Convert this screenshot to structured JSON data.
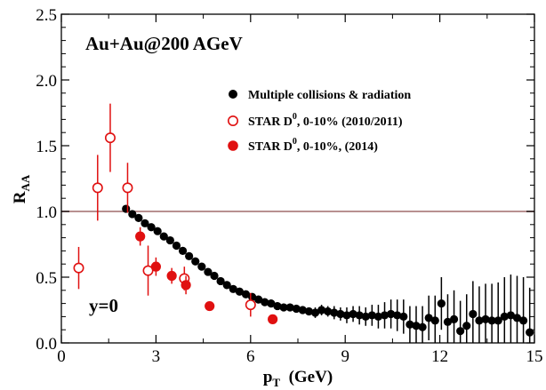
{
  "chart_data": {
    "type": "scatter",
    "title": "",
    "xlabel": {
      "main": "p",
      "sub": "T",
      "rest": "  (GeV)"
    },
    "ylabel": {
      "main": "R",
      "sub": "AA"
    },
    "xlim": [
      0,
      15
    ],
    "ylim": [
      0,
      2.5
    ],
    "xticks": [
      {
        "v": 0,
        "label": "0"
      },
      {
        "v": 3,
        "label": "3"
      },
      {
        "v": 6,
        "label": "6"
      },
      {
        "v": 9,
        "label": "9"
      },
      {
        "v": 12,
        "label": "12"
      },
      {
        "v": 15,
        "label": "15"
      }
    ],
    "yticks": [
      {
        "v": 0,
        "label": "0.0"
      },
      {
        "v": 0.5,
        "label": "0.5"
      },
      {
        "v": 1.0,
        "label": "1.0"
      },
      {
        "v": 1.5,
        "label": "1.5"
      },
      {
        "v": 2.0,
        "label": "2.0"
      },
      {
        "v": 2.5,
        "label": "2.5"
      }
    ],
    "grid": false,
    "legend_position": "top-right",
    "reference_line": {
      "y": 1.0,
      "color": "#b89090"
    },
    "annotations": {
      "system": "Au+Au@200 AGeV",
      "rapidity": "y=0"
    },
    "series": [
      {
        "name": "Multiple collisions & radiation",
        "marker": "filled-circle",
        "color": "#000000",
        "points": [
          [
            2.05,
            1.02,
            0.02
          ],
          [
            2.25,
            0.98,
            0.02
          ],
          [
            2.45,
            0.95,
            0.02
          ],
          [
            2.65,
            0.91,
            0.02
          ],
          [
            2.85,
            0.88,
            0.02
          ],
          [
            3.05,
            0.85,
            0.02
          ],
          [
            3.25,
            0.81,
            0.02
          ],
          [
            3.45,
            0.78,
            0.02
          ],
          [
            3.65,
            0.74,
            0.02
          ],
          [
            3.85,
            0.7,
            0.02
          ],
          [
            4.05,
            0.66,
            0.02
          ],
          [
            4.25,
            0.62,
            0.02
          ],
          [
            4.45,
            0.58,
            0.02
          ],
          [
            4.65,
            0.54,
            0.02
          ],
          [
            4.85,
            0.51,
            0.02
          ],
          [
            5.05,
            0.47,
            0.02
          ],
          [
            5.25,
            0.44,
            0.02
          ],
          [
            5.45,
            0.41,
            0.02
          ],
          [
            5.65,
            0.39,
            0.02
          ],
          [
            5.85,
            0.37,
            0.02
          ],
          [
            6.05,
            0.35,
            0.02
          ],
          [
            6.25,
            0.33,
            0.02
          ],
          [
            6.45,
            0.31,
            0.02
          ],
          [
            6.65,
            0.3,
            0.03
          ],
          [
            6.85,
            0.28,
            0.03
          ],
          [
            7.05,
            0.27,
            0.03
          ],
          [
            7.25,
            0.27,
            0.03
          ],
          [
            7.45,
            0.26,
            0.03
          ],
          [
            7.65,
            0.25,
            0.03
          ],
          [
            7.85,
            0.24,
            0.03
          ],
          [
            8.05,
            0.23,
            0.04
          ],
          [
            8.25,
            0.25,
            0.04
          ],
          [
            8.45,
            0.24,
            0.04
          ],
          [
            8.65,
            0.23,
            0.05
          ],
          [
            8.85,
            0.22,
            0.05
          ],
          [
            9.05,
            0.21,
            0.06
          ],
          [
            9.25,
            0.22,
            0.06
          ],
          [
            9.45,
            0.21,
            0.07
          ],
          [
            9.65,
            0.2,
            0.07
          ],
          [
            9.85,
            0.21,
            0.08
          ],
          [
            10.05,
            0.2,
            0.09
          ],
          [
            10.25,
            0.21,
            0.1
          ],
          [
            10.45,
            0.22,
            0.11
          ],
          [
            10.65,
            0.21,
            0.12
          ],
          [
            10.85,
            0.2,
            0.13
          ],
          [
            11.05,
            0.14,
            0.14
          ],
          [
            11.25,
            0.13,
            0.15
          ],
          [
            11.45,
            0.12,
            0.16
          ],
          [
            11.65,
            0.19,
            0.17
          ],
          [
            11.85,
            0.17,
            0.19
          ],
          [
            12.05,
            0.3,
            0.2
          ],
          [
            12.25,
            0.16,
            0.21
          ],
          [
            12.45,
            0.18,
            0.22
          ],
          [
            12.65,
            0.09,
            0.23
          ],
          [
            12.85,
            0.13,
            0.24
          ],
          [
            13.05,
            0.22,
            0.25
          ],
          [
            13.25,
            0.17,
            0.26
          ],
          [
            13.45,
            0.18,
            0.27
          ],
          [
            13.65,
            0.17,
            0.28
          ],
          [
            13.85,
            0.17,
            0.29
          ],
          [
            14.05,
            0.2,
            0.3
          ],
          [
            14.25,
            0.21,
            0.31
          ],
          [
            14.45,
            0.19,
            0.32
          ],
          [
            14.65,
            0.17,
            0.33
          ],
          [
            14.85,
            0.08,
            0.34
          ]
        ]
      },
      {
        "name": "STAR D0, 0-10% (2010/2011)",
        "legend_label": {
          "main": "STAR D",
          "sup": "0",
          "rest": ", 0-10% (2010/2011)"
        },
        "marker": "open-circle",
        "color": "#e01010",
        "points": [
          [
            0.55,
            0.57,
            0.16
          ],
          [
            1.15,
            1.18,
            0.25
          ],
          [
            1.55,
            1.56,
            0.26
          ],
          [
            2.1,
            1.18,
            0.19
          ],
          [
            2.75,
            0.55,
            0.19
          ],
          [
            3.9,
            0.49,
            0.09
          ],
          [
            6.0,
            0.29,
            0.09
          ]
        ]
      },
      {
        "name": "STAR D0, 0-10%, (2014)",
        "legend_label": {
          "main": "STAR D",
          "sup": "0",
          "rest": ", 0-10%, (2014)"
        },
        "marker": "filled-circle",
        "color": "#e01010",
        "points": [
          [
            2.5,
            0.81,
            0.07
          ],
          [
            3.0,
            0.58,
            0.07
          ],
          [
            3.5,
            0.51,
            0.06
          ],
          [
            3.95,
            0.44,
            0.07
          ],
          [
            4.7,
            0.28,
            0.03
          ],
          [
            6.7,
            0.18,
            0.03
          ]
        ]
      }
    ]
  }
}
